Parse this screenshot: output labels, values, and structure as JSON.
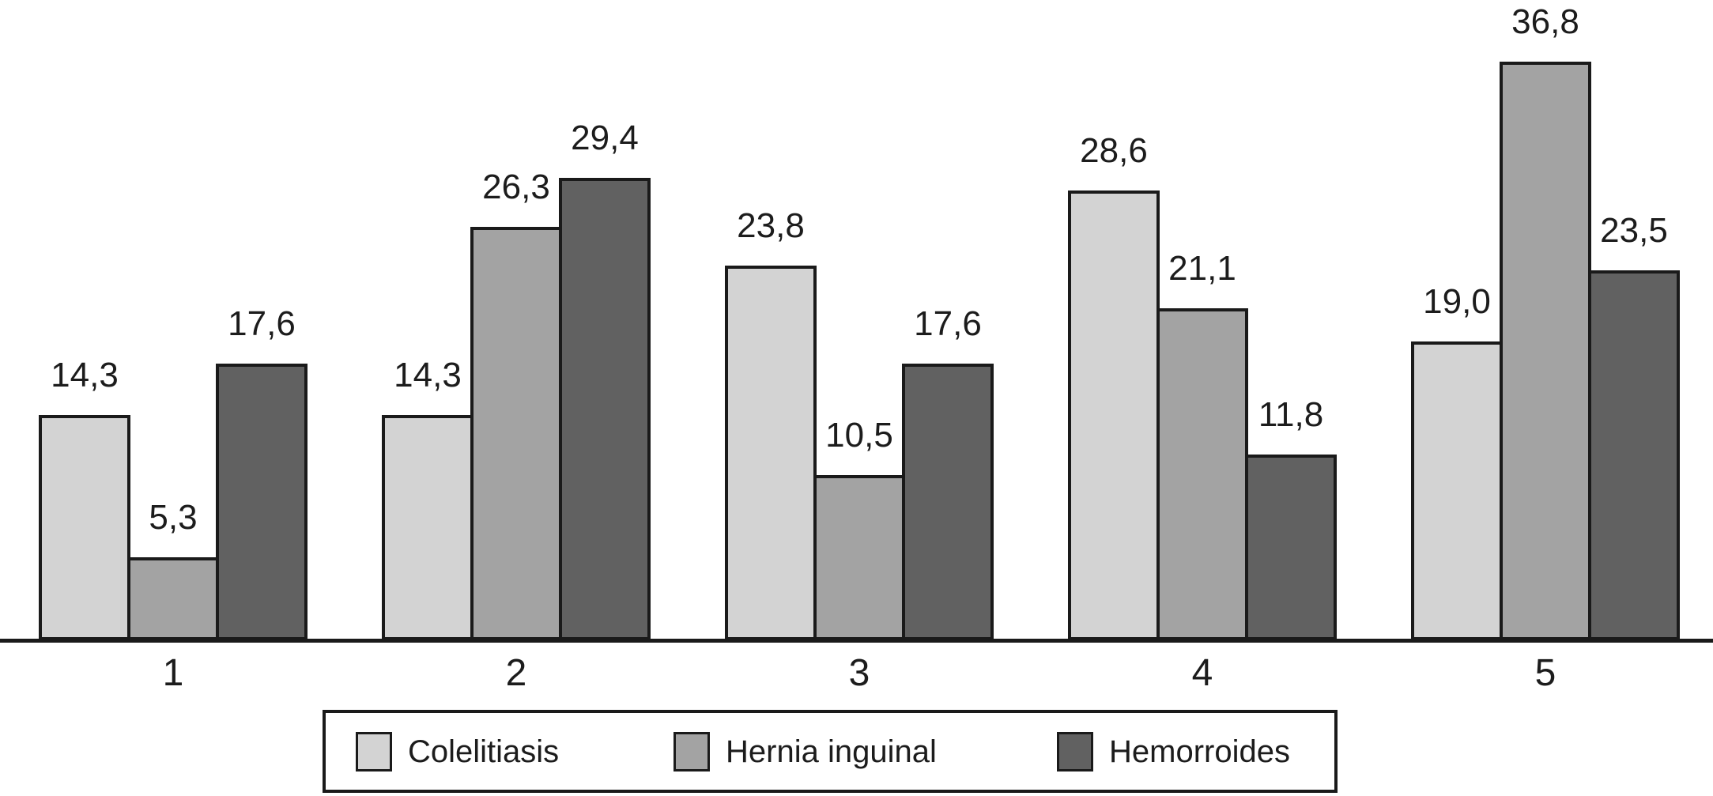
{
  "chart_data": {
    "type": "bar",
    "title": "",
    "xlabel": "",
    "ylabel": "",
    "categories": [
      "1",
      "2",
      "3",
      "4",
      "5"
    ],
    "series": [
      {
        "name": "Colelitiasis",
        "color": "#d3d3d3",
        "values": [
          14.3,
          14.3,
          23.8,
          28.6,
          19.0
        ],
        "labels": [
          "14,3",
          "14,3",
          "23,8",
          "28,6",
          "19,0"
        ]
      },
      {
        "name": "Hernia inguinal",
        "color": "#a3a3a3",
        "values": [
          5.3,
          26.3,
          10.5,
          21.1,
          36.8
        ],
        "labels": [
          "5,3",
          "26,3",
          "10,5",
          "21,1",
          "36,8"
        ]
      },
      {
        "name": "Hemorroides",
        "color": "#616161",
        "values": [
          17.6,
          29.4,
          17.6,
          11.8,
          23.5
        ],
        "labels": [
          "17,6",
          "29,4",
          "17,6",
          "11,8",
          "23,5"
        ]
      }
    ],
    "ylim": [
      0,
      40
    ],
    "grid": false,
    "value_labels_shown": true,
    "decimal_separator": ",",
    "legend_position": "bottom",
    "axis_color": "#1a1a1a",
    "background_color": "#ffffff",
    "text_color": "#1c1c1c"
  }
}
